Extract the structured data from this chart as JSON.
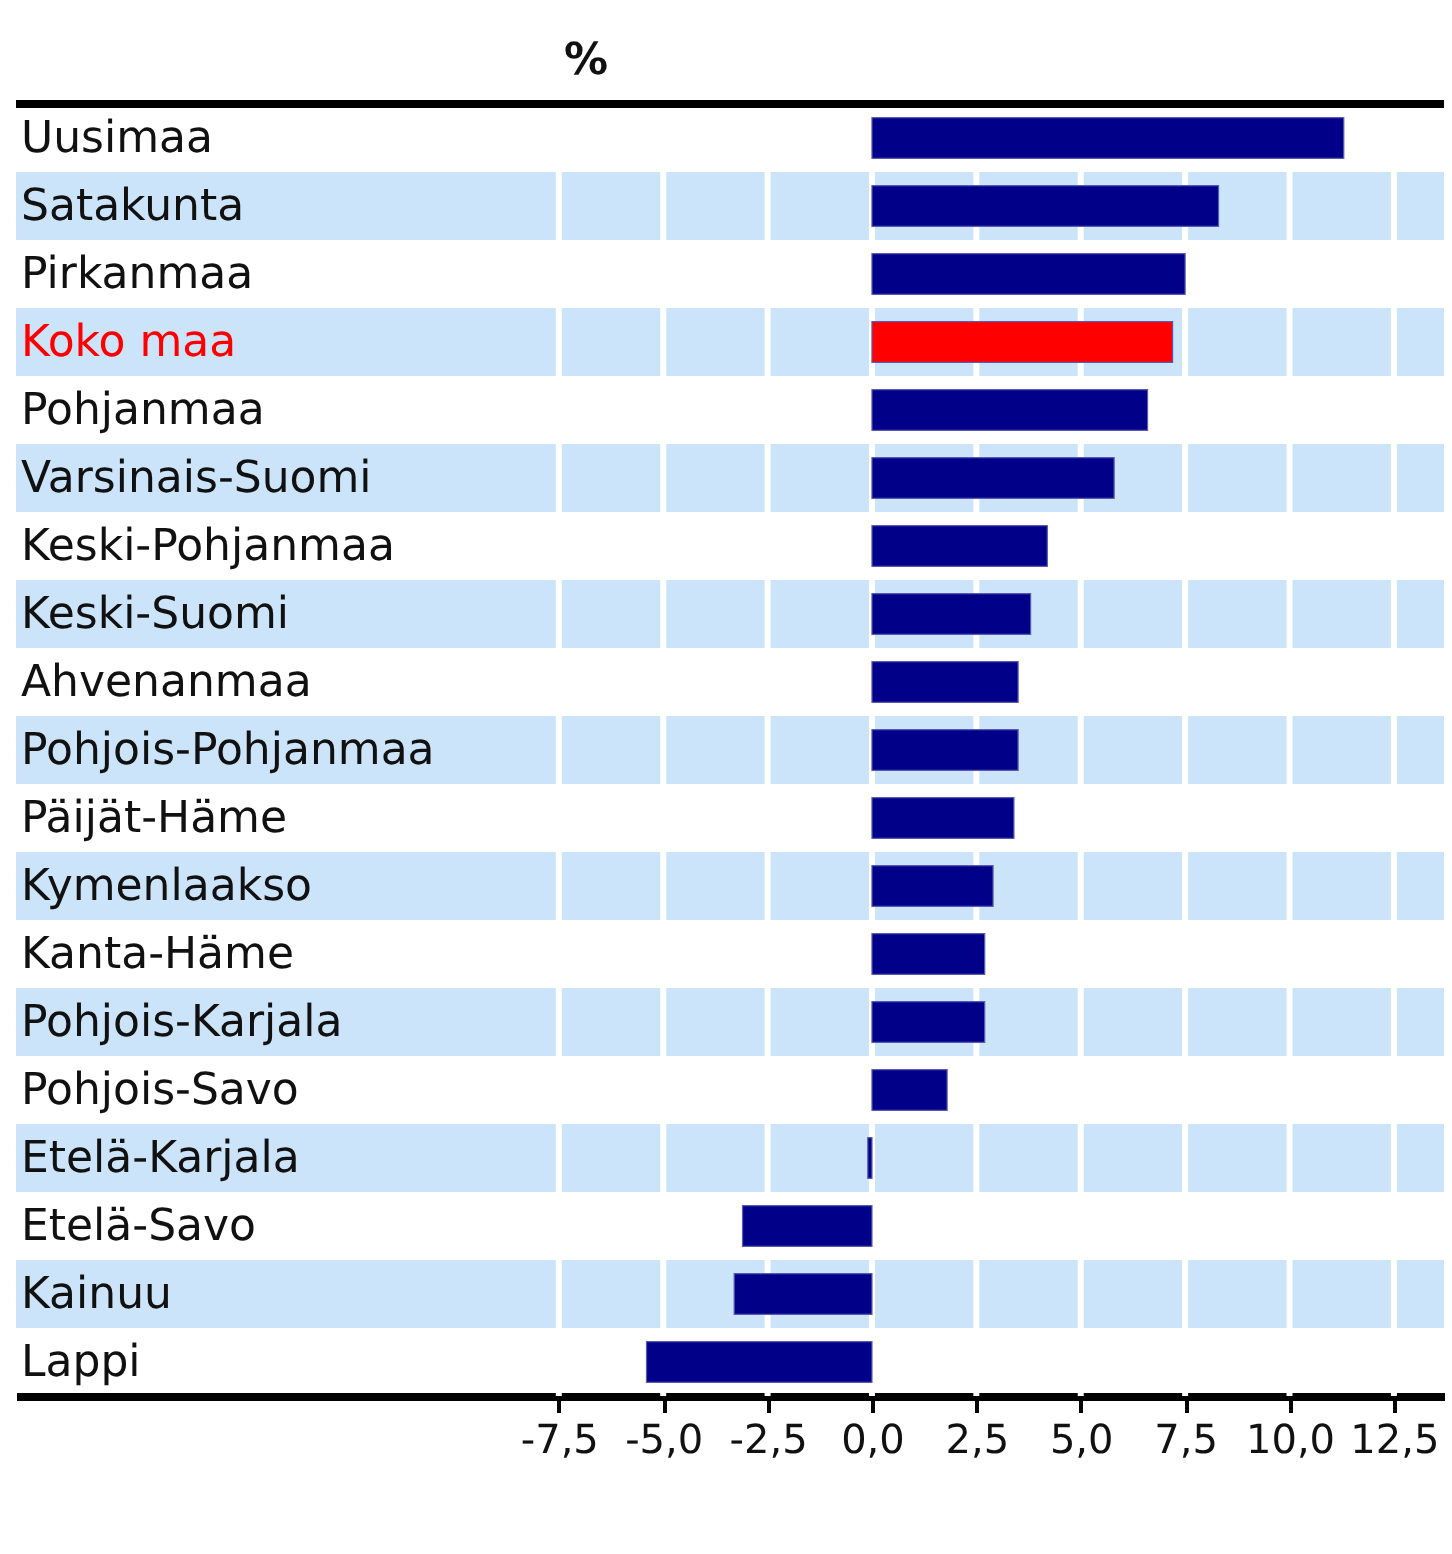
{
  "chart_data": {
    "type": "bar",
    "orientation": "horizontal",
    "xlabel": "%",
    "categories": [
      "Uusimaa",
      "Satakunta",
      "Pirkanmaa",
      "Koko maa",
      "Pohjanmaa",
      "Varsinais-Suomi",
      "Keski-Pohjanmaa",
      "Keski-Suomi",
      "Ahvenanmaa",
      "Pohjois-Pohjanmaa",
      "Päijät-Häme",
      "Kymenlaakso",
      "Kanta-Häme",
      "Pohjois-Karjala",
      "Pohjois-Savo",
      "Etelä-Karjala",
      "Etelä-Savo",
      "Kainuu",
      "Lappi"
    ],
    "values": [
      11.3,
      8.3,
      7.5,
      7.2,
      6.6,
      5.8,
      4.2,
      3.8,
      3.5,
      3.5,
      3.4,
      2.9,
      2.7,
      2.7,
      1.8,
      -0.1,
      -3.1,
      -3.3,
      -5.4
    ],
    "colors": [
      "#000088",
      "#000088",
      "#000088",
      "#ff0000",
      "#000088",
      "#000088",
      "#000088",
      "#000088",
      "#000088",
      "#000088",
      "#000088",
      "#000088",
      "#000088",
      "#000088",
      "#000088",
      "#000088",
      "#000088",
      "#000088",
      "#000088"
    ],
    "xlim": [
      -20.5,
      13.7
    ],
    "xticks": [
      {
        "value": -7.5,
        "label": "-7,5"
      },
      {
        "value": -5,
        "label": "-5,0"
      },
      {
        "value": -2.5,
        "label": "-2,5"
      },
      {
        "value": 0,
        "label": "0,0"
      },
      {
        "value": 2.5,
        "label": "2,5"
      },
      {
        "value": 5,
        "label": "5,0"
      },
      {
        "value": 7.5,
        "label": "7,5"
      },
      {
        "value": 10,
        "label": "10,0"
      },
      {
        "value": 12.5,
        "label": "12,5"
      }
    ],
    "bands": [
      {
        "axis": "y",
        "from": "Satakunta",
        "to": "Satakunta",
        "color": "#cce4fa"
      },
      {
        "axis": "y",
        "from": "Koko maa",
        "to": "Koko maa",
        "color": "#cce4fa"
      },
      {
        "axis": "y",
        "from": "Varsinais-Suomi",
        "to": "Varsinais-Suomi",
        "color": "#cce4fa"
      },
      {
        "axis": "y",
        "from": "Keski-Suomi",
        "to": "Keski-Suomi",
        "color": "#cce4fa"
      },
      {
        "axis": "y",
        "from": "Pohjois-Pohjanmaa",
        "to": "Pohjois-Pohjanmaa",
        "color": "#cce4fa"
      },
      {
        "axis": "y",
        "from": "Kymenlaakso",
        "to": "Kymenlaakso",
        "color": "#cce4fa"
      },
      {
        "axis": "y",
        "from": "Pohjois-Karjala",
        "to": "Pohjois-Karjala",
        "color": "#cce4fa"
      },
      {
        "axis": "y",
        "from": "Etelä-Karjala",
        "to": "Etelä-Karjala",
        "color": "#cce4fa"
      },
      {
        "axis": "y",
        "from": "Kainuu",
        "to": "Kainuu",
        "color": "#cce4fa"
      }
    ],
    "grid": "x"
  }
}
